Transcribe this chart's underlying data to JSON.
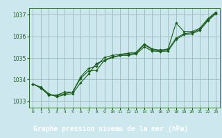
{
  "xlabel": "Graphe pression niveau de la mer (hPa)",
  "bg_color": "#cce8ee",
  "grid_color": "#99bbbb",
  "line_color": "#1a5c1a",
  "marker_color": "#1a5c1a",
  "label_bar_color": "#2d6e2d",
  "label_text_color": "#ffffff",
  "xlim": [
    -0.5,
    23.5
  ],
  "ylim": [
    1032.7,
    1037.3
  ],
  "yticks": [
    1033,
    1034,
    1035,
    1036,
    1037
  ],
  "xticks": [
    0,
    1,
    2,
    3,
    4,
    5,
    6,
    7,
    8,
    9,
    10,
    11,
    12,
    13,
    14,
    15,
    16,
    17,
    18,
    19,
    20,
    21,
    22,
    23
  ],
  "series": [
    [
      1033.8,
      1033.65,
      1033.35,
      1033.2,
      1033.3,
      1033.35,
      1033.85,
      1034.25,
      1034.75,
      1034.88,
      1035.02,
      1035.12,
      1035.12,
      1035.18,
      1035.52,
      1035.32,
      1035.3,
      1035.32,
      1035.85,
      1036.08,
      1036.12,
      1036.28,
      1036.72,
      1037.05
    ],
    [
      1033.8,
      1033.6,
      1033.3,
      1033.25,
      1033.35,
      1033.42,
      1034.05,
      1034.4,
      1034.42,
      1034.9,
      1035.05,
      1035.12,
      1035.17,
      1035.22,
      1035.62,
      1035.38,
      1035.32,
      1035.38,
      1035.92,
      1036.12,
      1036.17,
      1036.32,
      1036.77,
      1037.08
    ],
    [
      1033.8,
      1033.62,
      1033.28,
      1033.28,
      1033.42,
      1033.42,
      1034.12,
      1034.52,
      1034.62,
      1035.02,
      1035.12,
      1035.17,
      1035.22,
      1035.27,
      1035.65,
      1035.42,
      1035.37,
      1035.42,
      1036.62,
      1036.22,
      1036.22,
      1036.38,
      1036.82,
      1037.12
    ]
  ]
}
